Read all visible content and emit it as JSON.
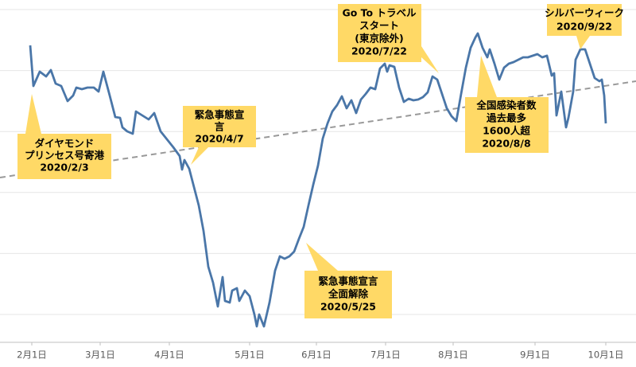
{
  "chart_data": {
    "type": "line",
    "x": [
      0,
      4,
      12,
      20,
      26,
      32,
      39,
      47,
      54,
      58,
      65,
      72,
      80,
      86,
      92,
      100,
      107,
      113,
      116,
      122,
      129,
      133,
      141,
      149,
      156,
      164,
      172,
      180,
      188,
      191,
      194,
      200,
      206,
      212,
      218,
      224,
      230,
      236,
      242,
      245,
      251,
      254,
      260,
      263,
      270,
      276,
      282,
      285,
      288,
      294,
      301,
      308,
      314,
      320,
      326,
      332,
      338,
      344,
      350,
      356,
      362,
      368,
      374,
      380,
      386,
      392,
      398,
      404,
      410,
      416,
      422,
      428,
      434,
      440,
      446,
      449,
      452,
      458,
      464,
      470,
      476,
      482,
      488,
      494,
      500,
      506,
      512,
      518,
      524,
      530,
      536,
      542,
      548,
      554,
      560,
      563,
      569,
      575,
      578,
      584,
      590,
      596,
      602,
      608,
      614,
      620,
      626,
      632,
      638,
      644,
      650,
      656,
      659,
      662,
      668,
      674,
      677,
      683,
      686,
      692,
      698,
      704,
      710,
      716,
      719,
      722,
      724
    ],
    "series": [
      {
        "color": "#4a76a8",
        "values": [
          373,
          322,
          340,
          334,
          342,
          325,
          322,
          303,
          310,
          320,
          318,
          320,
          320,
          315,
          340,
          310,
          283,
          282,
          270,
          265,
          262,
          290,
          285,
          280,
          288,
          265,
          255,
          245,
          234,
          217,
          229,
          218,
          195,
          172,
          140,
          95,
          75,
          45,
          82,
          52,
          50,
          65,
          68,
          52,
          65,
          58,
          35,
          20,
          35,
          20,
          50,
          90,
          108,
          105,
          108,
          114,
          130,
          145,
          172,
          198,
          222,
          256,
          275,
          290,
          298,
          309,
          294,
          304,
          288,
          305,
          312,
          320,
          318,
          344,
          350,
          340,
          348,
          346,
          320,
          302,
          306,
          304,
          305,
          308,
          314,
          334,
          330,
          312,
          294,
          284,
          278,
          312,
          345,
          370,
          383,
          388,
          370,
          358,
          368,
          350,
          330,
          345,
          350,
          352,
          355,
          358,
          358,
          360,
          362,
          358,
          360,
          335,
          338,
          285,
          315,
          270,
          282,
          315,
          355,
          368,
          368,
          350,
          332,
          328,
          330,
          310,
          275
        ]
      }
    ],
    "xlim": [
      -38,
      762
    ],
    "ylim": [
      0,
      430
    ],
    "grid": true,
    "xticks": [
      {
        "value": 2,
        "label": "2月1日"
      },
      {
        "value": 88,
        "label": "3月1日"
      },
      {
        "value": 175,
        "label": "4月1日"
      },
      {
        "value": 276,
        "label": "5月1日"
      },
      {
        "value": 360,
        "label": "6月1日"
      },
      {
        "value": 447,
        "label": "7月1日"
      },
      {
        "value": 532,
        "label": "8月1日"
      },
      {
        "value": 635,
        "label": "9月1日"
      },
      {
        "value": 724,
        "label": "10月1日"
      }
    ],
    "trend": {
      "x": [
        -38,
        762
      ],
      "values": [
        207,
        328
      ],
      "color": "#999999"
    },
    "annotations": [
      {
        "lines": [
          "ダイヤモンド",
          "プリンセス号寄港",
          "2020/2/3"
        ]
      },
      {
        "lines": [
          "緊急事態宣",
          "言",
          "2020/4/7"
        ]
      },
      {
        "lines": [
          "緊急事態宣言",
          "全面解除",
          "2020/5/25"
        ]
      },
      {
        "lines": [
          "Go To トラベル",
          "スタート",
          "(東京除外)",
          "2020/7/22"
        ]
      },
      {
        "lines": [
          "全国感染者数",
          "過去最多",
          "1600人超",
          "2020/8/8"
        ]
      },
      {
        "lines": [
          "シルバーウィーク",
          "2020/9/22"
        ]
      }
    ]
  }
}
